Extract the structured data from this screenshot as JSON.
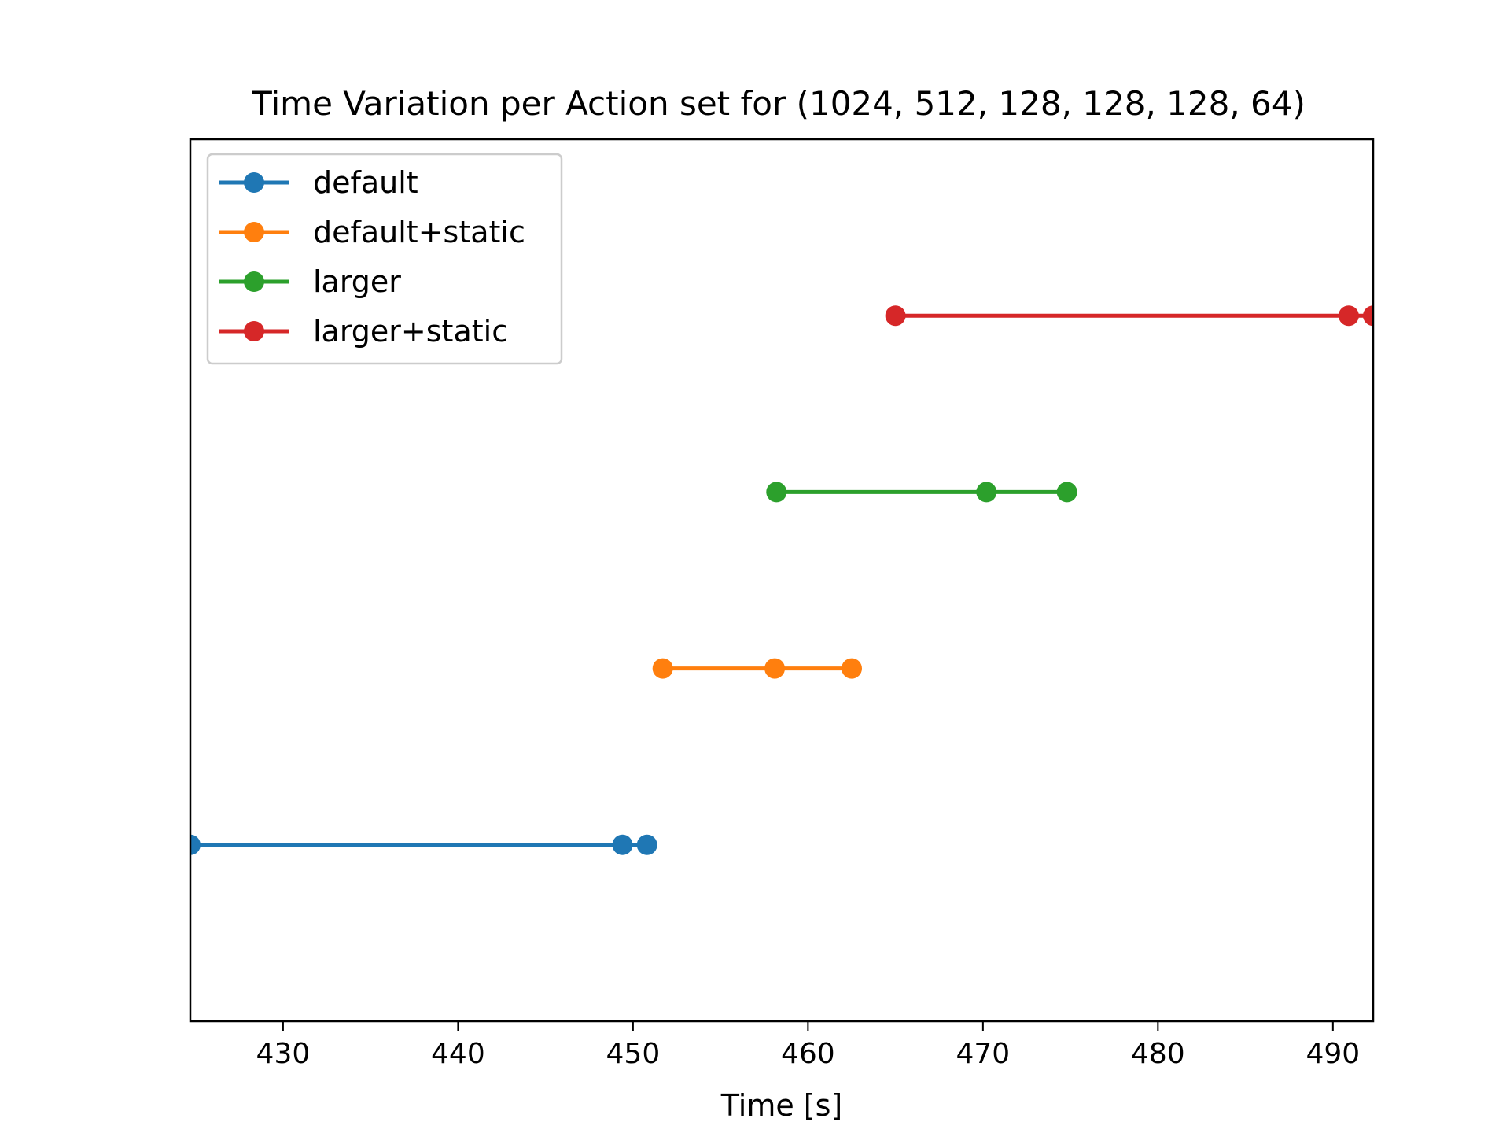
{
  "chart_data": {
    "type": "line",
    "title": "Time Variation per Action set for (1024, 512, 128, 128, 128, 64)",
    "xlabel": "Time [s]",
    "ylabel": "",
    "xlim": [
      424.7,
      492.3
    ],
    "ylim": [
      0,
      5
    ],
    "xticks": [
      430,
      440,
      450,
      460,
      470,
      480,
      490
    ],
    "xtick_labels": [
      "430",
      "440",
      "450",
      "460",
      "470",
      "480",
      "490"
    ],
    "yticks_visible": false,
    "grid": false,
    "legend_position": "top-left",
    "series": [
      {
        "name": "default",
        "color": "#1f77b4",
        "y": 1,
        "x": [
          424.7,
          449.4,
          450.8
        ]
      },
      {
        "name": "default+static",
        "color": "#ff7f0e",
        "y": 2,
        "x": [
          451.7,
          458.1,
          462.5
        ]
      },
      {
        "name": "larger",
        "color": "#2ca02c",
        "y": 3,
        "x": [
          458.2,
          470.2,
          474.8
        ]
      },
      {
        "name": "larger+static",
        "color": "#d62728",
        "y": 4,
        "x": [
          465.0,
          490.9,
          492.3
        ]
      }
    ]
  }
}
